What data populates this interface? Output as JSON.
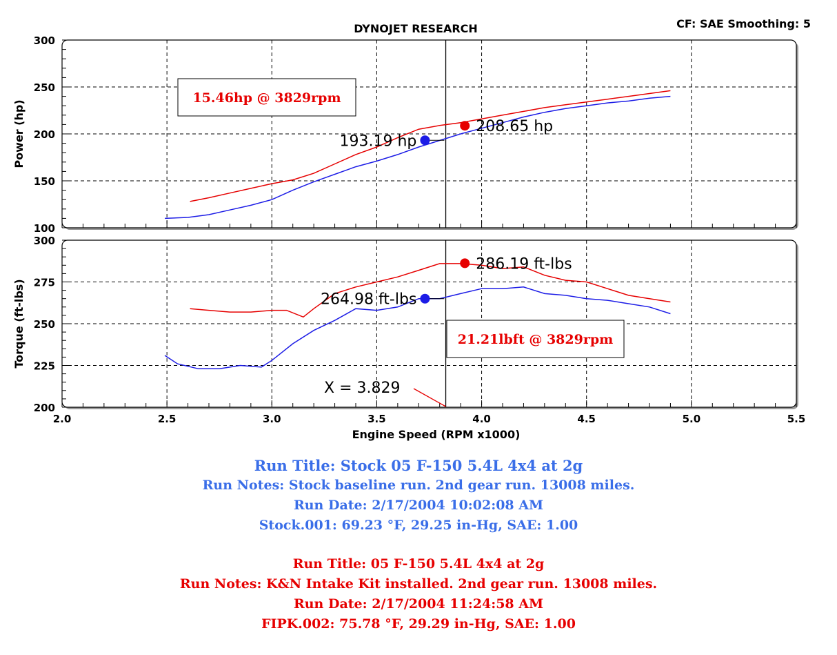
{
  "header": {
    "title": "DYNOJET RESEARCH",
    "corner_info": "CF: SAE  Smoothing: 5"
  },
  "chart_data": [
    {
      "type": "line",
      "ylabel": "Power (hp)",
      "xlim": [
        2.0,
        5.5
      ],
      "ylim": [
        100,
        300
      ],
      "y_ticks": [
        100,
        150,
        200,
        250,
        300
      ],
      "grid": true,
      "cursor_x": 3.829,
      "series": [
        {
          "color": "#e60000",
          "x": [
            2.61,
            2.7,
            2.8,
            2.9,
            3.0,
            3.1,
            3.2,
            3.3,
            3.4,
            3.5,
            3.6,
            3.7,
            3.8,
            3.9,
            4.0,
            4.1,
            4.2,
            4.3,
            4.4,
            4.5,
            4.6,
            4.7,
            4.8,
            4.9
          ],
          "y": [
            128,
            132,
            137,
            142,
            147,
            151,
            158,
            168,
            178,
            186,
            196,
            205,
            209,
            212,
            216,
            220,
            224,
            228,
            231,
            234,
            237,
            240,
            243,
            246
          ]
        },
        {
          "color": "#1c1ce6",
          "x": [
            2.49,
            2.6,
            2.7,
            2.8,
            2.9,
            3.0,
            3.1,
            3.2,
            3.3,
            3.4,
            3.5,
            3.6,
            3.7,
            3.8,
            3.9,
            4.0,
            4.1,
            4.2,
            4.3,
            4.4,
            4.5,
            4.6,
            4.7,
            4.8,
            4.9
          ],
          "y": [
            110,
            111,
            114,
            119,
            124,
            130,
            140,
            149,
            157,
            165,
            171,
            178,
            186,
            193,
            200,
            206,
            212,
            218,
            223,
            227,
            230,
            233,
            235,
            238,
            240
          ]
        }
      ],
      "markers": [
        {
          "x": 3.73,
          "y": 193.19,
          "color": "#1c1ce6",
          "label": "193.19 hp"
        },
        {
          "x": 3.92,
          "y": 208.65,
          "color": "#e60000",
          "label": "208.65 hp"
        }
      ],
      "annotation_box": "15.46hp @ 3829rpm"
    },
    {
      "type": "line",
      "ylabel": "Torque (ft-lbs)",
      "xlabel": "Engine Speed (RPM x1000)",
      "xlim": [
        2.0,
        5.5
      ],
      "ylim": [
        200,
        300
      ],
      "x_ticks": [
        "2.0",
        "2.5",
        "3.0",
        "3.5",
        "4.0",
        "4.5",
        "5.0",
        "5.5"
      ],
      "y_ticks": [
        200,
        225,
        250,
        275,
        300
      ],
      "grid": true,
      "cursor_x": 3.829,
      "cursor_label": "X = 3.829",
      "series": [
        {
          "color": "#e60000",
          "x": [
            2.61,
            2.7,
            2.8,
            2.9,
            3.0,
            3.07,
            3.15,
            3.2,
            3.3,
            3.4,
            3.5,
            3.6,
            3.7,
            3.8,
            3.9,
            4.0,
            4.1,
            4.2,
            4.3,
            4.4,
            4.5,
            4.6,
            4.7,
            4.8,
            4.9
          ],
          "y": [
            259,
            258,
            257,
            257,
            258,
            258,
            254,
            259,
            268,
            272,
            275,
            278,
            282,
            286,
            286,
            285,
            283,
            284,
            279,
            276,
            275,
            271,
            267,
            265,
            263
          ]
        },
        {
          "color": "#1c1ce6",
          "x": [
            2.49,
            2.55,
            2.65,
            2.75,
            2.85,
            2.95,
            3.0,
            3.1,
            3.2,
            3.3,
            3.4,
            3.5,
            3.6,
            3.7,
            3.8,
            3.9,
            4.0,
            4.1,
            4.2,
            4.3,
            4.4,
            4.5,
            4.6,
            4.7,
            4.8,
            4.9
          ],
          "y": [
            231,
            226,
            223,
            223,
            225,
            224,
            228,
            238,
            246,
            252,
            259,
            258,
            260,
            265,
            265,
            268,
            271,
            271,
            272,
            268,
            267,
            265,
            264,
            262,
            260,
            256
          ]
        }
      ],
      "markers": [
        {
          "x": 3.73,
          "y": 264.98,
          "color": "#1c1ce6",
          "label": "264.98 ft-lbs"
        },
        {
          "x": 3.92,
          "y": 286.19,
          "color": "#e60000",
          "label": "286.19 ft-lbs"
        }
      ],
      "annotation_box": "21.21lbft @ 3829rpm"
    }
  ],
  "notes": {
    "stock": {
      "color": "#3a6ee8",
      "title": "Run Title: Stock 05 F-150 5.4L 4x4 at 2g",
      "notes": "Run Notes: Stock baseline run. 2nd gear run. 13008 miles.",
      "date": "Run Date: 2/17/2004 10:02:08 AM",
      "conditions": "Stock.001: 69.23 °F, 29.25 in-Hg, SAE: 1.00"
    },
    "kn": {
      "color": "#e60000",
      "title": "Run Title: 05 F-150 5.4L 4x4 at 2g",
      "notes": "Run Notes: K&N Intake Kit installed. 2nd gear run. 13008 miles.",
      "date": "Run Date: 2/17/2004 11:24:58 AM",
      "conditions": "FIPK.002: 75.78 °F, 29.29 in-Hg, SAE: 1.00"
    }
  }
}
